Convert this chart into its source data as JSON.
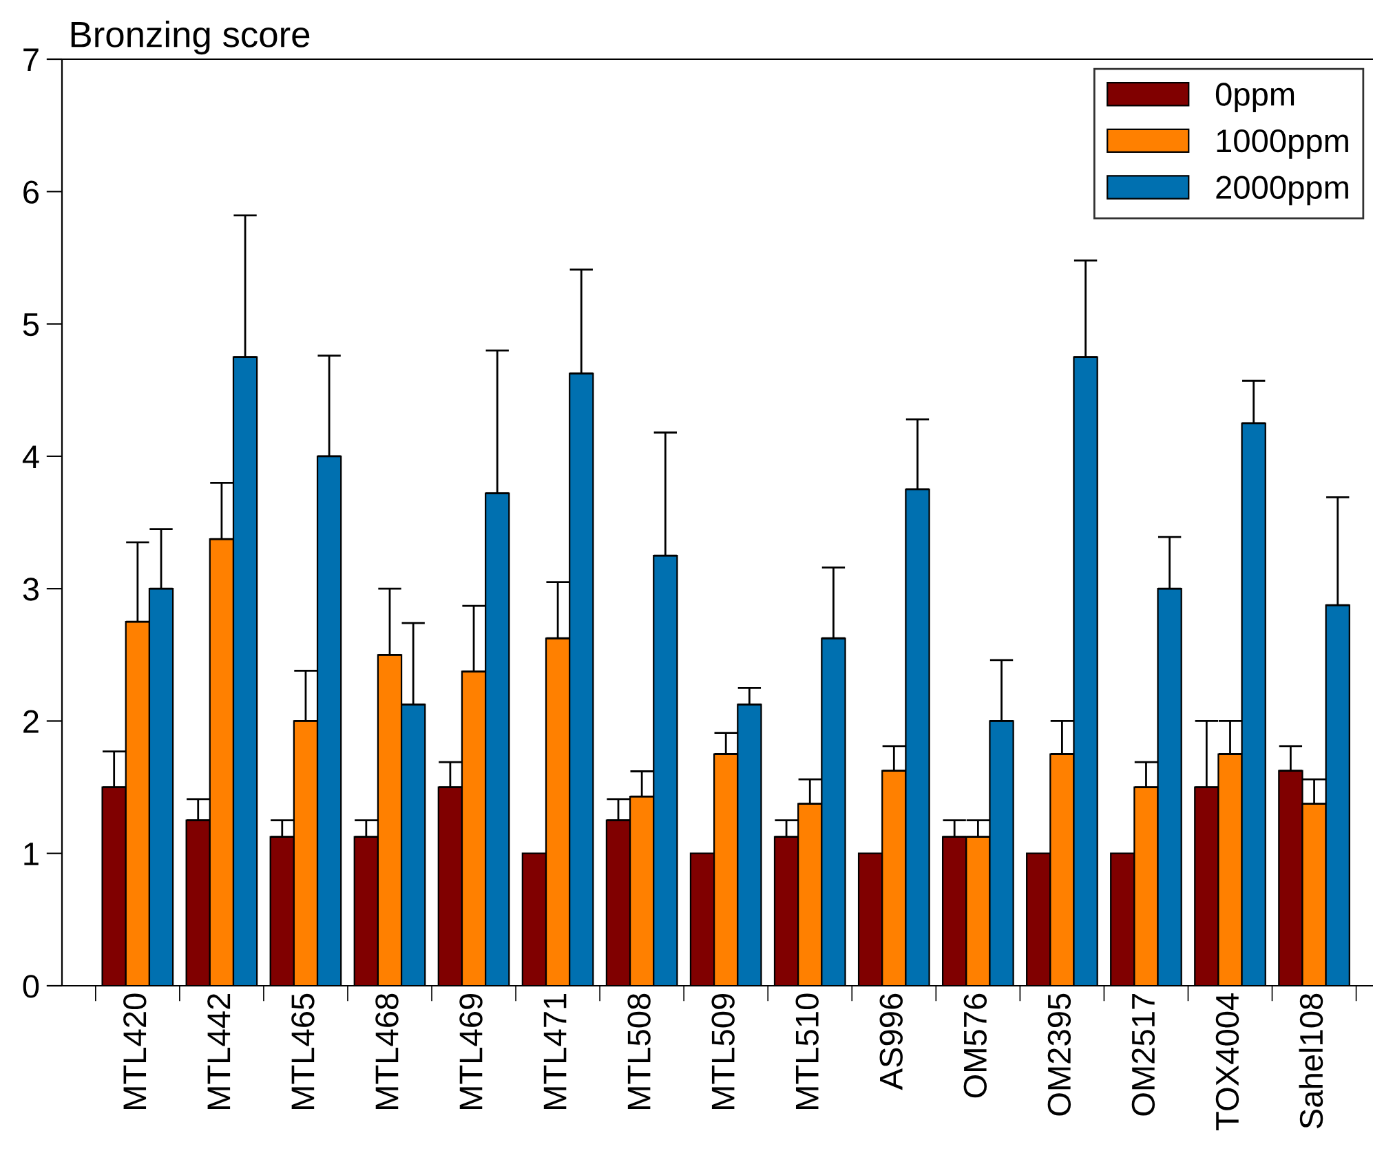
{
  "chart_data": {
    "type": "bar",
    "ylabel": "Bronzing score",
    "categories": [
      "MTL420",
      "MTL442",
      "MTL465",
      "MTL468",
      "MTL469",
      "MTL471",
      "MTL508",
      "MTL509",
      "MTL510",
      "AS996",
      "OM576",
      "OM2395",
      "OM2517",
      "TOX4004",
      "Sahel108"
    ],
    "series": [
      {
        "name": "0ppm",
        "color": "#800000",
        "values": [
          1.5,
          1.25,
          1.125,
          1.125,
          1.5,
          1.0,
          1.25,
          1.0,
          1.125,
          1.0,
          1.125,
          1.0,
          1.0,
          1.5,
          1.625
        ],
        "errors": [
          [
            1.5,
            1.77
          ],
          [
            1.25,
            1.41
          ],
          [
            1.125,
            1.25
          ],
          [
            1.125,
            1.25
          ],
          [
            1.5,
            1.69
          ],
          null,
          [
            1.25,
            1.41
          ],
          null,
          [
            1.125,
            1.25
          ],
          null,
          [
            1.125,
            1.25
          ],
          null,
          null,
          [
            1.5,
            2.0
          ],
          [
            1.625,
            1.81
          ]
        ]
      },
      {
        "name": "1000ppm",
        "color": "#ff8000",
        "values": [
          2.75,
          3.375,
          2.0,
          2.5,
          2.375,
          2.625,
          1.43,
          1.75,
          1.375,
          1.625,
          1.125,
          1.75,
          1.5,
          1.75,
          1.375
        ],
        "errors": [
          [
            2.75,
            3.35
          ],
          [
            3.375,
            3.8
          ],
          [
            2.0,
            2.38
          ],
          [
            2.5,
            3.0
          ],
          [
            2.375,
            2.87
          ],
          [
            2.625,
            3.05
          ],
          [
            1.43,
            1.62
          ],
          [
            1.75,
            1.91
          ],
          [
            1.375,
            1.56
          ],
          [
            1.625,
            1.81
          ],
          [
            1.125,
            1.25
          ],
          [
            1.75,
            2.0
          ],
          [
            1.5,
            1.69
          ],
          [
            1.75,
            2.0
          ],
          [
            1.375,
            1.56
          ]
        ]
      },
      {
        "name": "2000ppm",
        "color": "#0070b0",
        "values": [
          3.0,
          4.75,
          4.0,
          2.125,
          3.72,
          4.625,
          3.25,
          2.125,
          2.625,
          3.75,
          2.0,
          4.75,
          3.0,
          4.25,
          2.875
        ],
        "errors": [
          [
            3.0,
            3.45
          ],
          [
            4.75,
            5.82
          ],
          [
            4.0,
            4.76
          ],
          [
            2.125,
            2.74
          ],
          [
            3.72,
            4.8
          ],
          [
            4.625,
            5.41
          ],
          [
            3.25,
            4.18
          ],
          [
            2.125,
            2.25
          ],
          [
            2.625,
            3.16
          ],
          [
            3.75,
            4.28
          ],
          [
            2.0,
            2.46
          ],
          [
            4.75,
            5.48
          ],
          [
            3.0,
            3.39
          ],
          [
            4.25,
            4.57
          ],
          [
            2.875,
            3.69
          ]
        ]
      }
    ],
    "ylim": [
      0,
      7
    ],
    "yticks": [
      0,
      1,
      2,
      3,
      4,
      5,
      6,
      7
    ],
    "grid": false,
    "legend": "top right"
  }
}
